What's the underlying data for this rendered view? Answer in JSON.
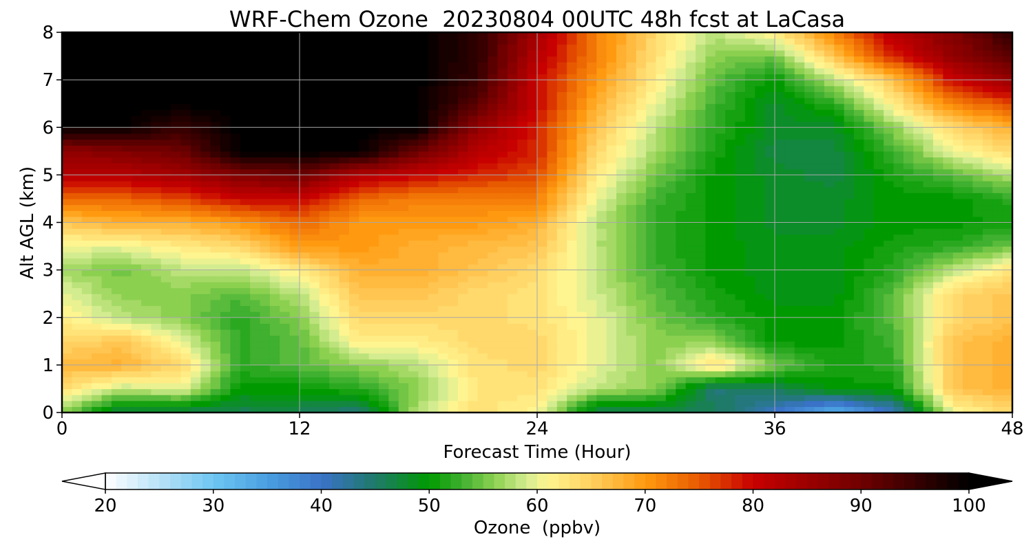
{
  "chart_data": {
    "type": "heatmap",
    "title": "WRF-Chem Ozone  20230804 00UTC 48h fcst at LaCasa",
    "xlabel": "Forecast Time (Hour)",
    "ylabel": "Alt AGL (km)",
    "xlim": [
      0,
      48
    ],
    "ylim": [
      0,
      8
    ],
    "x_ticks": [
      0,
      12,
      24,
      36,
      48
    ],
    "y_ticks": [
      0,
      1,
      2,
      3,
      4,
      5,
      6,
      7,
      8
    ],
    "grid": true,
    "colorbar": {
      "label": "Ozone  (ppbv)",
      "ticks": [
        20,
        30,
        40,
        50,
        60,
        70,
        80,
        90,
        100
      ],
      "range": [
        20,
        100
      ],
      "extend": "both",
      "stops": [
        [
          20,
          "#ffffff"
        ],
        [
          25,
          "#b8e2f8"
        ],
        [
          30,
          "#6ec6f2"
        ],
        [
          35,
          "#4a9fe0"
        ],
        [
          40,
          "#3a72c8"
        ],
        [
          45,
          "#1f7a6a"
        ],
        [
          50,
          "#009a00"
        ],
        [
          53,
          "#3fb030"
        ],
        [
          56,
          "#8cd050"
        ],
        [
          59,
          "#d4ec90"
        ],
        [
          61,
          "#fff590"
        ],
        [
          65,
          "#ffd060"
        ],
        [
          70,
          "#ff9a10"
        ],
        [
          75,
          "#e85a00"
        ],
        [
          80,
          "#c80000"
        ],
        [
          90,
          "#700000"
        ],
        [
          100,
          "#000000"
        ]
      ]
    },
    "grid_x": [
      0,
      3,
      6,
      9,
      12,
      15,
      18,
      21,
      24,
      27,
      30,
      33,
      36,
      39,
      42,
      45,
      48
    ],
    "grid_y": [
      0,
      0.5,
      1,
      1.5,
      2,
      2.5,
      3,
      3.5,
      4,
      4.5,
      5,
      5.5,
      6,
      6.5,
      7,
      7.5,
      8
    ],
    "values": [
      [
        56,
        46,
        46,
        46,
        46,
        44,
        58,
        63,
        61,
        46,
        46,
        46,
        40,
        32,
        40,
        60,
        64
      ],
      [
        64,
        58,
        60,
        50,
        50,
        52,
        56,
        63,
        63,
        58,
        56,
        44,
        46,
        50,
        50,
        66,
        68
      ],
      [
        67,
        68,
        64,
        52,
        54,
        56,
        58,
        63,
        64,
        60,
        56,
        64,
        55,
        51,
        52,
        66,
        68
      ],
      [
        64,
        66,
        60,
        52,
        54,
        62,
        62,
        64,
        64,
        60,
        56,
        56,
        50,
        50,
        53,
        66,
        68
      ],
      [
        62,
        58,
        56,
        52,
        56,
        64,
        64,
        64,
        63,
        60,
        55,
        52,
        50,
        50,
        54,
        64,
        66
      ],
      [
        60,
        56,
        56,
        54,
        58,
        66,
        66,
        64,
        63,
        59,
        54,
        51,
        49,
        49,
        54,
        64,
        66
      ],
      [
        57,
        55,
        58,
        58,
        62,
        68,
        68,
        66,
        64,
        58,
        53,
        50,
        49,
        49,
        52,
        58,
        63
      ],
      [
        60,
        60,
        62,
        64,
        70,
        70,
        68,
        67,
        66,
        58,
        52,
        50,
        49,
        49,
        51,
        52,
        55
      ],
      [
        66,
        68,
        68,
        70,
        74,
        70,
        70,
        70,
        68,
        58,
        52,
        50,
        48,
        48,
        50,
        50,
        51
      ],
      [
        74,
        74,
        76,
        80,
        80,
        74,
        72,
        72,
        72,
        60,
        53,
        50,
        48,
        48,
        50,
        50,
        52
      ],
      [
        82,
        82,
        84,
        88,
        90,
        82,
        80,
        78,
        76,
        62,
        55,
        50,
        48,
        47,
        51,
        54,
        58
      ],
      [
        86,
        88,
        90,
        100,
        100,
        100,
        90,
        82,
        78,
        64,
        57,
        51,
        47,
        47,
        53,
        60,
        64
      ],
      [
        100,
        100,
        95,
        100,
        100,
        100,
        100,
        86,
        78,
        66,
        58,
        52,
        48,
        48,
        56,
        64,
        68
      ],
      [
        100,
        100,
        100,
        100,
        100,
        100,
        100,
        92,
        80,
        68,
        60,
        53,
        48,
        52,
        62,
        72,
        76
      ],
      [
        100,
        100,
        100,
        100,
        100,
        100,
        100,
        95,
        80,
        70,
        62,
        54,
        50,
        58,
        66,
        80,
        86
      ],
      [
        100,
        100,
        100,
        100,
        100,
        100,
        100,
        96,
        82,
        72,
        63,
        56,
        55,
        66,
        78,
        86,
        92
      ],
      [
        100,
        100,
        100,
        100,
        100,
        100,
        100,
        96,
        84,
        72,
        64,
        58,
        62,
        72,
        82,
        88,
        96
      ]
    ]
  }
}
